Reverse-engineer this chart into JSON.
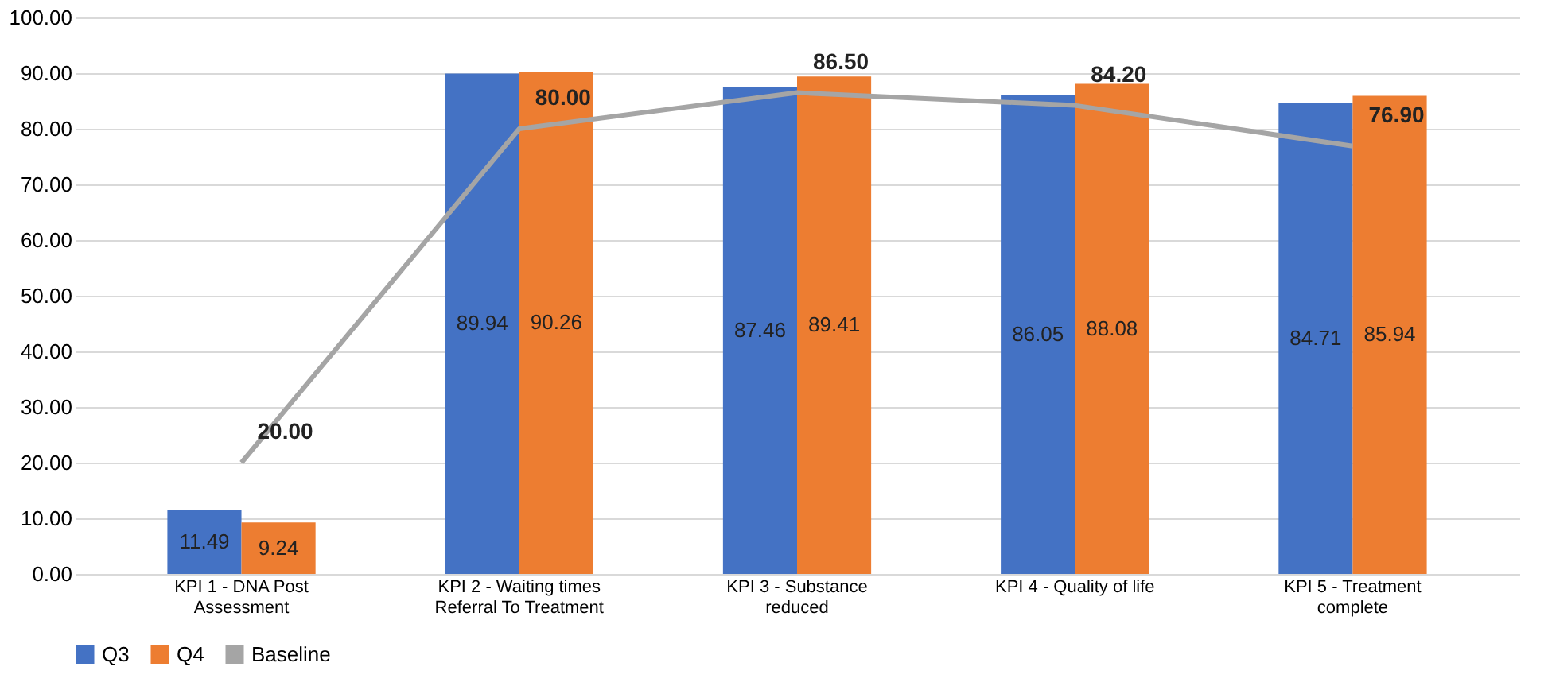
{
  "chart_data": {
    "type": "bar",
    "categories": [
      "KPI 1 - DNA Post Assessment",
      "KPI 2 - Waiting times Referral To Treatment",
      "KPI 3 - Substance reduced",
      "KPI 4 - Quality of life",
      "KPI 5 - Treatment complete"
    ],
    "series": [
      {
        "name": "Q3",
        "color": "#4472c4",
        "values": [
          11.49,
          89.94,
          87.46,
          86.05,
          84.71
        ],
        "value_labels": [
          "11.49",
          "89.94",
          "87.46",
          "86.05",
          "84.71"
        ]
      },
      {
        "name": "Q4",
        "color": "#ed7d31",
        "values": [
          9.24,
          90.26,
          89.41,
          88.08,
          85.94
        ],
        "value_labels": [
          "9.24",
          "90.26",
          "89.41",
          "88.08",
          "85.94"
        ]
      },
      {
        "name": "Baseline",
        "type": "line",
        "color": "#a5a5a5",
        "values": [
          20,
          80,
          86.5,
          84.2,
          76.9
        ],
        "value_labels": [
          "20.00",
          "80.00",
          "86.50",
          "84.20",
          "76.90"
        ]
      }
    ],
    "ylim": [
      0,
      100
    ],
    "yticks": [
      {
        "value": 0,
        "label": "0.00"
      },
      {
        "value": 10,
        "label": "10.00"
      },
      {
        "value": 20,
        "label": "20.00"
      },
      {
        "value": 30,
        "label": "30.00"
      },
      {
        "value": 40,
        "label": "40.00"
      },
      {
        "value": 50,
        "label": "50.00"
      },
      {
        "value": 60,
        "label": "60.00"
      },
      {
        "value": 70,
        "label": "70.00"
      },
      {
        "value": 80,
        "label": "80.00"
      },
      {
        "value": 90,
        "label": "90.00"
      },
      {
        "value": 100,
        "label": "100.00"
      }
    ],
    "grid": "y",
    "legend": "bottom",
    "marker": "none",
    "line_style": "solid"
  }
}
